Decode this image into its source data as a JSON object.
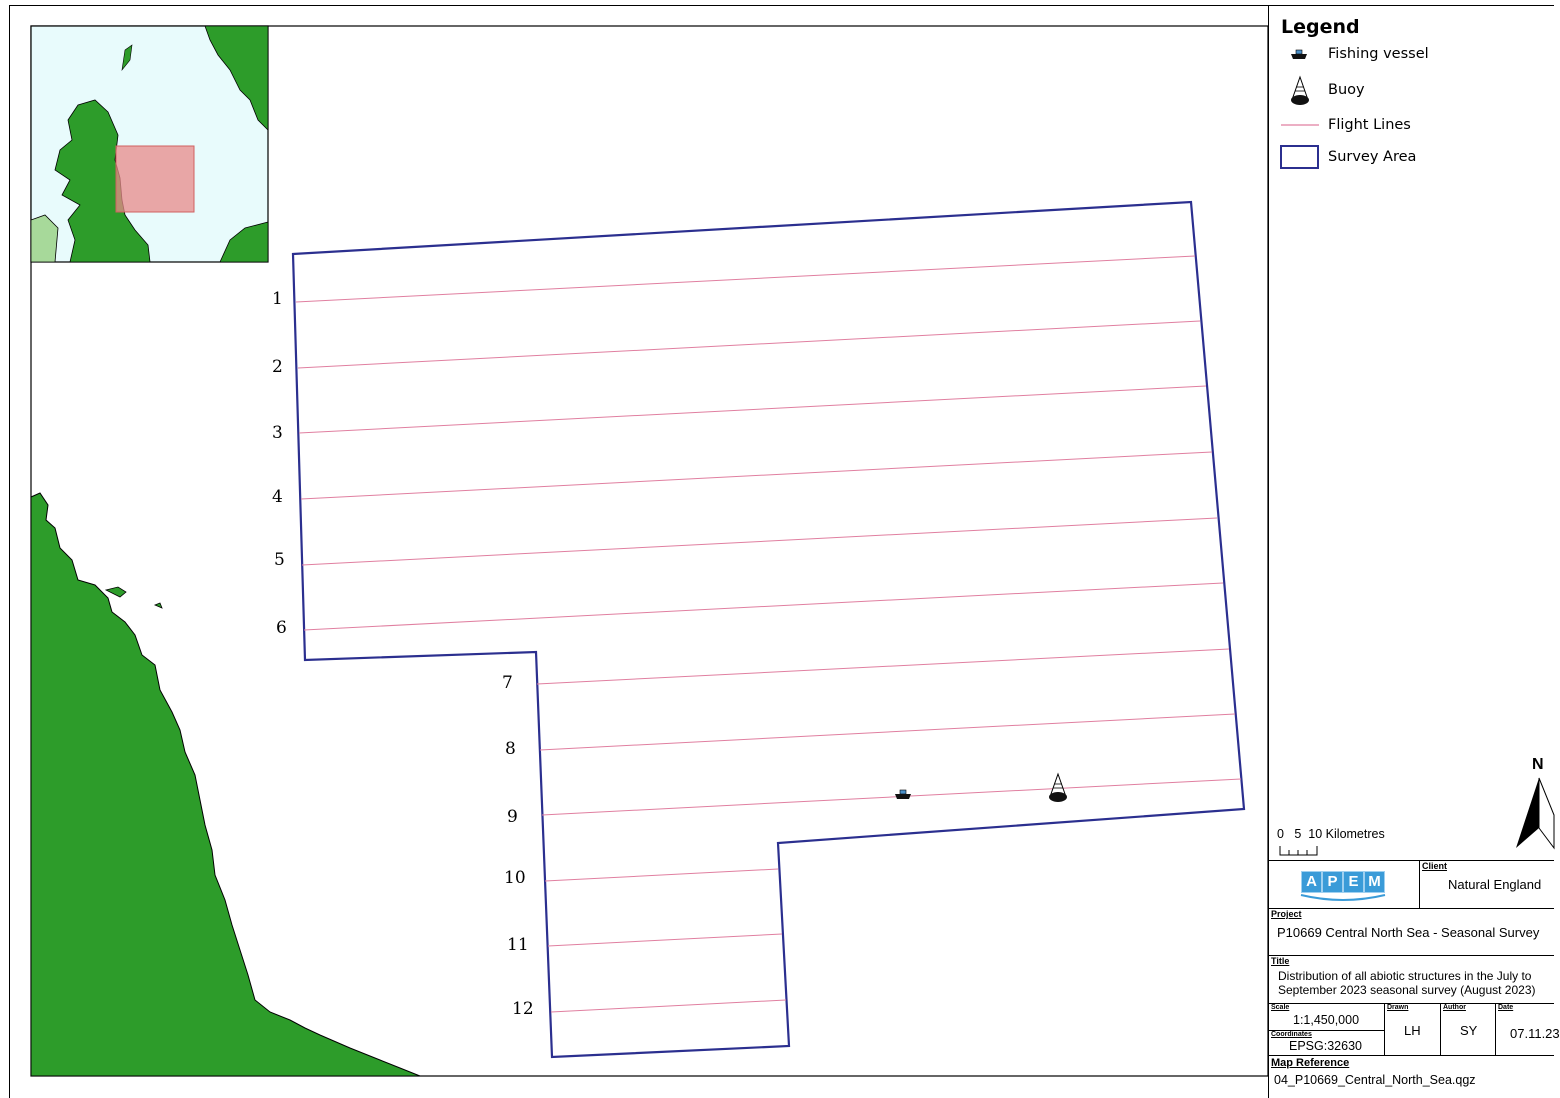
{
  "flight_line_labels": [
    "1",
    "2",
    "3",
    "4",
    "5",
    "6",
    "7",
    "8",
    "9",
    "10",
    "11",
    "12"
  ],
  "legend": {
    "title": "Legend",
    "items": [
      {
        "label": "Fishing vessel",
        "icon": "fishing-vessel-icon"
      },
      {
        "label": "Buoy",
        "icon": "buoy-icon"
      },
      {
        "label": "Flight Lines",
        "icon": "flight-line-icon"
      },
      {
        "label": "Survey Area",
        "icon": "survey-area-icon"
      }
    ]
  },
  "scale_bar": {
    "ticks": "0   5  10",
    "unit": "Kilometres"
  },
  "north_arrow": {
    "label": "N"
  },
  "title_block": {
    "logo_letters": [
      "A",
      "P",
      "E",
      "M"
    ],
    "client_label": "Client",
    "client": "Natural England",
    "project_label": "Project",
    "project": "P10669 Central North Sea - Seasonal Survey",
    "title_label": "Title",
    "title_line1": "Distribution of all abiotic structures in the July to",
    "title_line2": "September 2023 seasonal survey (August 2023)",
    "scale_label": "Scale",
    "scale": "1:1,450,000",
    "coordinates_label": "Coordinates",
    "coordinates": "EPSG:32630",
    "drawn_label": "Drawn",
    "drawn": "LH",
    "author_label": "Author",
    "author": "SY",
    "date_label": "Date",
    "date": "07.11.23",
    "map_reference_label": "Map Reference",
    "map_reference": "04_P10669_Central_North_Sea.qgz"
  },
  "colors": {
    "land": "#2d9c2a",
    "sea_inset": "#e8fbfc",
    "survey_outline": "#2b2f8f",
    "flight_line": "#e07fa0",
    "inset_box": "#e88a8a",
    "logo": "#3a9bd8"
  }
}
